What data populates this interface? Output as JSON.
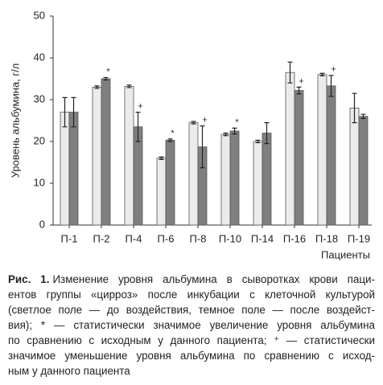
{
  "chart_data": {
    "type": "bar",
    "y_label": "Уровень альбумина, г/л",
    "x_label": "Пациенты",
    "categories": [
      "П-1",
      "П-2",
      "П-4",
      "П-6",
      "П-8",
      "П-10",
      "П-14",
      "П-16",
      "П-18",
      "П-19"
    ],
    "series": [
      {
        "color": "#ebebeb",
        "values": [
          27,
          33,
          33.2,
          16,
          24.5,
          21.7,
          20,
          36.5,
          36,
          28
        ],
        "errors": [
          3.5,
          0.3,
          0.3,
          0.3,
          0.3,
          0.3,
          0.3,
          2.5,
          0.3,
          3.5
        ],
        "markers": [
          null,
          null,
          null,
          null,
          null,
          null,
          null,
          null,
          null,
          null
        ]
      },
      {
        "color": "#7f7f7f",
        "values": [
          27,
          35,
          23.5,
          20.3,
          18.7,
          22.5,
          22,
          32.2,
          33.3,
          26
        ],
        "errors": [
          3.5,
          0.3,
          3.5,
          0.3,
          5,
          0.7,
          2.5,
          0.8,
          2.5,
          0.5
        ],
        "markers": [
          null,
          "*",
          "+",
          "*",
          "+",
          "*",
          null,
          "+",
          "+",
          null
        ]
      }
    ],
    "ylim": [
      0,
      50
    ],
    "yticks": [
      0,
      10,
      20,
      30,
      40,
      50
    ]
  },
  "caption": {
    "label": "Рис. 1.",
    "lines": [
      "Изменение уровня альбумина в сыворотках крови паци-",
      "ентов группы «цирроз» после инкубации с клеточной культурой",
      "(светлое поле — до воздействия, темное поле — после воздейст-",
      "вия); * — статистически значимое увеличение уровня альбумина",
      "по сравнению с исходным у данного пациента; ⁺ — статистически",
      "значимое уменьшение уровня альбумина по сравнению с исход-",
      "ным у данного пациента"
    ]
  }
}
